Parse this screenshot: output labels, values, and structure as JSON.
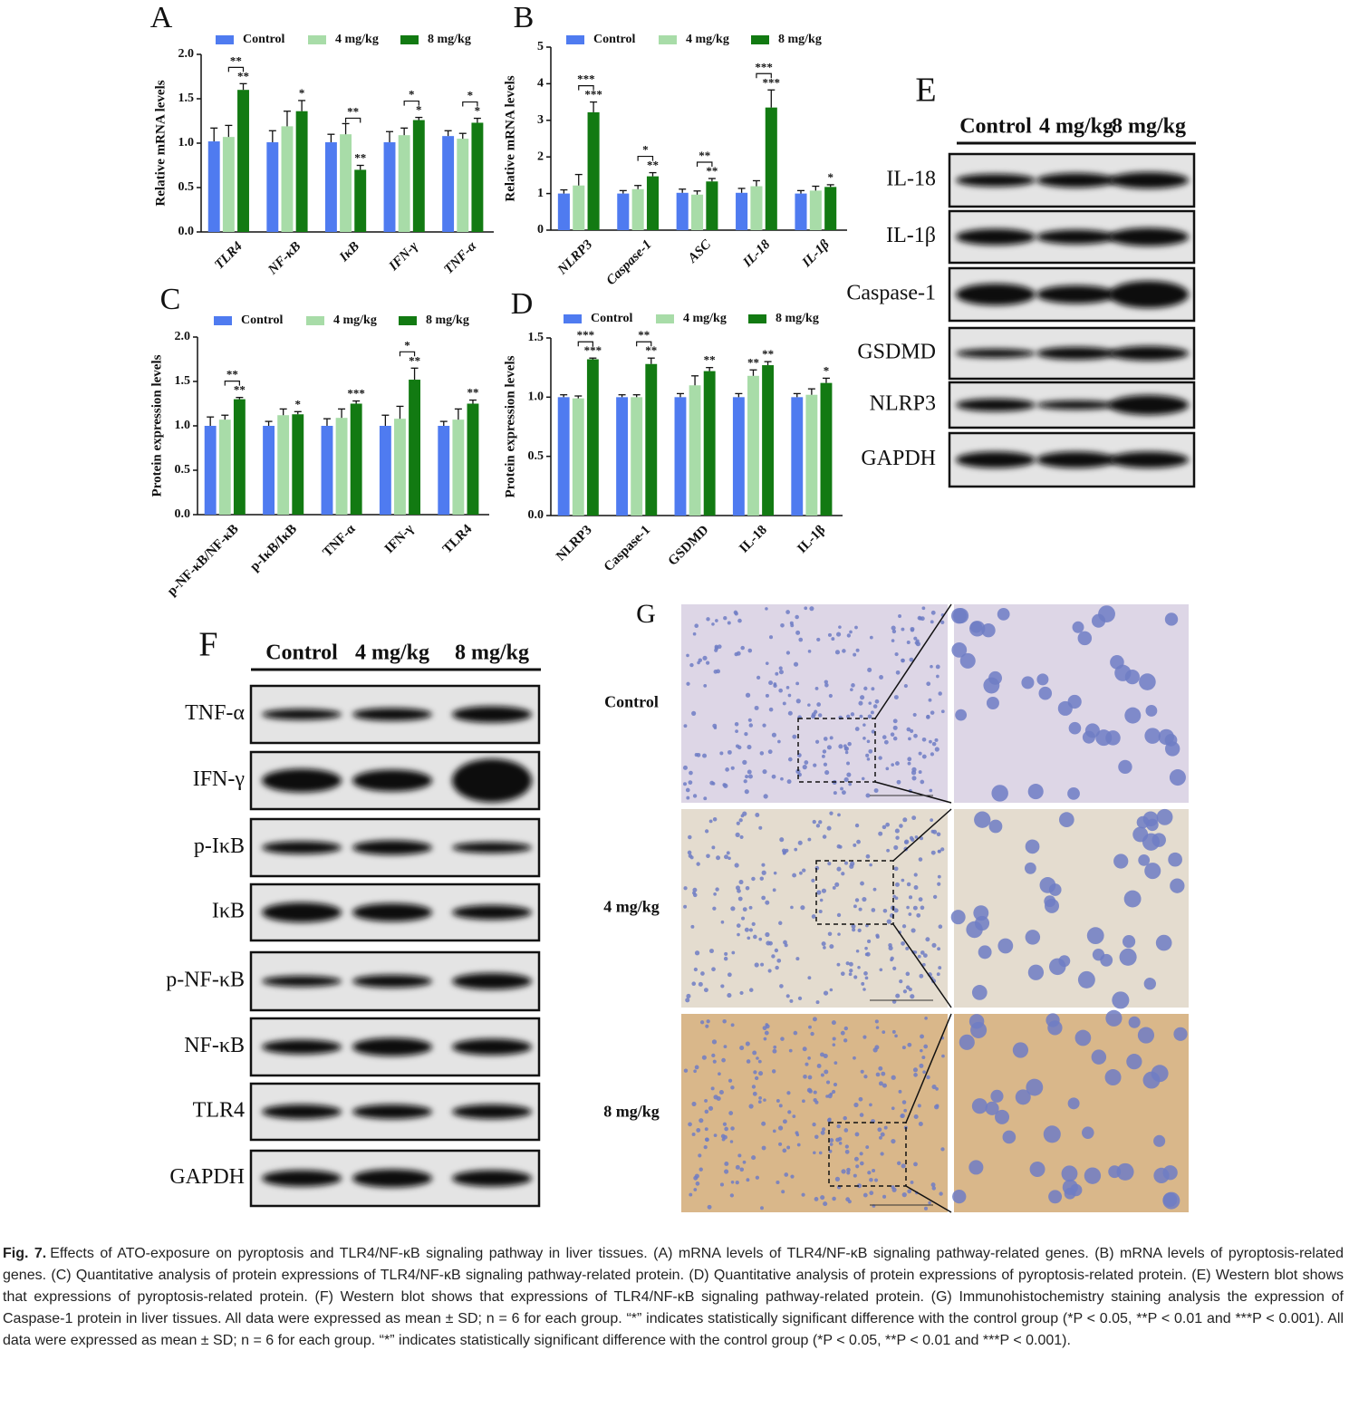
{
  "chart_data": [
    {
      "type": "bar",
      "panel": "A",
      "y_label": "Relative mRNA levels",
      "category_style": "italic",
      "categories": [
        "TLR4",
        "NF-κB",
        "IκB",
        "IFN-γ",
        "TNF-α"
      ],
      "ylim": [
        0,
        2
      ],
      "yticks": [
        {
          "value": 0,
          "label": "0.0"
        },
        {
          "value": 0.5,
          "label": "0.5"
        },
        {
          "value": 1,
          "label": "1.0"
        },
        {
          "value": 1.5,
          "label": "1.5"
        },
        {
          "value": 2,
          "label": "2.0"
        }
      ],
      "series": [
        {
          "name": "Control",
          "color": "#4f7bf0",
          "values": [
            1.02,
            1.01,
            1.01,
            1.01,
            1.08
          ],
          "errors": [
            0.15,
            0.13,
            0.09,
            0.12,
            0.06
          ]
        },
        {
          "name": "4 mg/kg",
          "color": "#a8dca8",
          "values": [
            1.07,
            1.19,
            1.1,
            1.09,
            1.05
          ],
          "errors": [
            0.13,
            0.17,
            0.12,
            0.08,
            0.06
          ]
        },
        {
          "name": "8 mg/kg",
          "color": "#127a12",
          "values": [
            1.6,
            1.36,
            0.7,
            1.26,
            1.23
          ],
          "errors": [
            0.07,
            0.12,
            0.05,
            0.03,
            0.05
          ],
          "stars": [
            "**",
            "*",
            "**",
            "*",
            "*"
          ]
        }
      ],
      "brackets": [
        "**",
        null,
        "**",
        "*",
        "*"
      ]
    },
    {
      "type": "bar",
      "panel": "B",
      "y_label": "Relative mRNA levels",
      "category_style": "italic",
      "categories": [
        "NLRP3",
        "Caspase-1",
        "ASC",
        "IL-18",
        "IL-1β"
      ],
      "ylim": [
        0,
        5
      ],
      "yticks": [
        0,
        1,
        2,
        3,
        4,
        5
      ],
      "series": [
        {
          "name": "Control",
          "color": "#4f7bf0",
          "values": [
            1.0,
            1.0,
            1.02,
            1.02,
            1.0
          ],
          "errors": [
            0.1,
            0.08,
            0.1,
            0.12,
            0.08
          ]
        },
        {
          "name": "4 mg/kg",
          "color": "#a8dca8",
          "values": [
            1.22,
            1.12,
            0.97,
            1.2,
            1.08
          ],
          "errors": [
            0.3,
            0.1,
            0.1,
            0.15,
            0.12
          ]
        },
        {
          "name": "8 mg/kg",
          "color": "#127a12",
          "values": [
            3.22,
            1.47,
            1.33,
            3.35,
            1.18
          ],
          "errors": [
            0.28,
            0.1,
            0.08,
            0.48,
            0.06
          ],
          "stars": [
            "***",
            "**",
            "**",
            "***",
            "*"
          ]
        }
      ],
      "brackets": [
        "***",
        "*",
        "**",
        "***",
        null
      ]
    },
    {
      "type": "bar",
      "panel": "C",
      "y_label": "Protein expression levels",
      "category_style": "normal",
      "categories": [
        "p-NF-κB/NF-κB",
        "p-IκB/IκB",
        "TNF-α",
        "IFN-γ",
        "TLR4"
      ],
      "ylim": [
        0,
        2
      ],
      "yticks": [
        {
          "value": 0,
          "label": "0.0"
        },
        {
          "value": 0.5,
          "label": "0.5"
        },
        {
          "value": 1,
          "label": "1.0"
        },
        {
          "value": 1.5,
          "label": "1.5"
        },
        {
          "value": 2,
          "label": "2.0"
        }
      ],
      "series": [
        {
          "name": "Control",
          "color": "#4f7bf0",
          "values": [
            1.0,
            1.0,
            1.0,
            1.0,
            1.0
          ],
          "errors": [
            0.1,
            0.05,
            0.08,
            0.12,
            0.05
          ]
        },
        {
          "name": "4 mg/kg",
          "color": "#a8dca8",
          "values": [
            1.07,
            1.12,
            1.09,
            1.08,
            1.07
          ],
          "errors": [
            0.05,
            0.07,
            0.1,
            0.14,
            0.12
          ]
        },
        {
          "name": "8 mg/kg",
          "color": "#127a12",
          "values": [
            1.3,
            1.13,
            1.25,
            1.52,
            1.25
          ],
          "errors": [
            0.02,
            0.03,
            0.03,
            0.13,
            0.04
          ],
          "stars": [
            "**",
            "*",
            "***",
            "**",
            "**"
          ]
        }
      ],
      "brackets": [
        "**",
        null,
        null,
        "*",
        null
      ]
    },
    {
      "type": "bar",
      "panel": "D",
      "y_label": "Protein expression levels",
      "category_style": "normal",
      "categories": [
        "NLRP3",
        "Caspase-1",
        "GSDMD",
        "IL-18",
        "IL-1β"
      ],
      "ylim": [
        0,
        1.5
      ],
      "yticks": [
        {
          "value": 0,
          "label": "0.0"
        },
        {
          "value": 0.5,
          "label": "0.5"
        },
        {
          "value": 1,
          "label": "1.0"
        },
        {
          "value": 1.5,
          "label": "1.5"
        }
      ],
      "series": [
        {
          "name": "Control",
          "color": "#4f7bf0",
          "values": [
            1.0,
            1.0,
            1.0,
            1.0,
            1.0
          ],
          "errors": [
            0.02,
            0.02,
            0.03,
            0.03,
            0.03
          ]
        },
        {
          "name": "4 mg/kg",
          "color": "#a8dca8",
          "values": [
            0.99,
            1.0,
            1.1,
            1.18,
            1.02
          ],
          "errors": [
            0.02,
            0.02,
            0.08,
            0.05,
            0.05
          ],
          "stars": [
            null,
            null,
            null,
            "**",
            null
          ]
        },
        {
          "name": "8 mg/kg",
          "color": "#127a12",
          "values": [
            1.32,
            1.28,
            1.22,
            1.27,
            1.12
          ],
          "errors": [
            0.01,
            0.05,
            0.03,
            0.03,
            0.04
          ],
          "stars": [
            "***",
            "**",
            "**",
            "**",
            "*"
          ]
        }
      ],
      "brackets": [
        "***",
        "**",
        null,
        null,
        null
      ]
    }
  ],
  "blot_E": {
    "letter": "E",
    "columns": [
      "Control",
      "4 mg/kg",
      "8 mg/kg"
    ],
    "rows": [
      "IL-18",
      "IL-1β",
      "Caspase-1",
      "GSDMD",
      "NLRP3",
      "GAPDH"
    ]
  },
  "blot_F": {
    "letter": "F",
    "columns": [
      "Control",
      "4 mg/kg",
      "8 mg/kg"
    ],
    "rows": [
      "TNF-α",
      "IFN-γ",
      "p-IκB",
      "IκB",
      "p-NF-κB",
      "NF-κB",
      "TLR4",
      "GAPDH"
    ]
  },
  "ihc": {
    "letter": "G",
    "groups": [
      "Control",
      "4 mg/kg",
      "8 mg/kg"
    ]
  },
  "caption": {
    "label": "Fig. 7.",
    "text": "Effects of ATO-exposure on pyroptosis and TLR4/NF-κB signaling pathway in liver tissues. (A) mRNA levels of TLR4/NF-κB signaling pathway-related genes. (B) mRNA levels of pyroptosis-related genes. (C) Quantitative analysis of protein expressions of TLR4/NF-κB signaling pathway-related protein. (D) Quantitative analysis of protein expressions of pyroptosis-related protein. (E) Western blot shows that expressions of pyroptosis-related protein. (F) Western blot shows that expressions of TLR4/NF-κB signaling pathway-related protein. (G) Immunohistochemistry staining analysis the expression of Caspase-1 protein in liver tissues. All data were expressed as mean ± SD; n = 6 for each group. “*” indicates statistically significant difference with the control group (*P < 0.05, **P < 0.01 and ***P < 0.001). All data were expressed as mean ± SD; n = 6 for each group. “*” indicates statistically significant difference with the control group (*P < 0.05, **P < 0.01 and ***P < 0.001)."
  }
}
